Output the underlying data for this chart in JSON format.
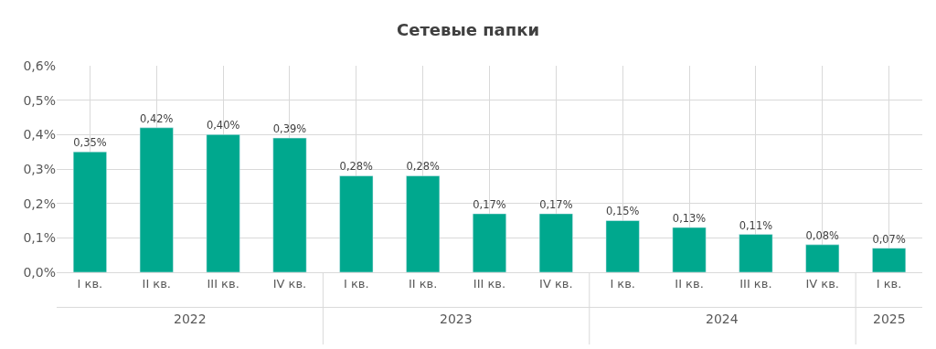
{
  "chart_data": {
    "type": "bar",
    "title": "Сетевые папки",
    "categories": [
      "I кв.",
      "II кв.",
      "III кв.",
      "IV кв.",
      "I кв.",
      "II кв.",
      "III кв.",
      "IV кв.",
      "I кв.",
      "II кв.",
      "III кв.",
      "IV кв.",
      "I кв."
    ],
    "values": [
      0.35,
      0.42,
      0.4,
      0.39,
      0.28,
      0.28,
      0.17,
      0.17,
      0.15,
      0.13,
      0.11,
      0.08,
      0.07
    ],
    "value_labels": [
      "0,35%",
      "0,42%",
      "0,40%",
      "0,39%",
      "0,28%",
      "0,28%",
      "0,17%",
      "0,17%",
      "0,15%",
      "0,13%",
      "0,11%",
      "0,08%",
      "0,07%"
    ],
    "color": "#00a88e",
    "ylim": [
      0,
      0.6
    ],
    "yticks": [
      {
        "value": 0,
        "label": "0,0%"
      },
      {
        "value": 0.1,
        "label": "0,1%"
      },
      {
        "value": 0.2,
        "label": "0,2%"
      },
      {
        "value": 0.3,
        "label": "0,3%"
      },
      {
        "value": 0.4,
        "label": "0,4%"
      },
      {
        "value": 0.5,
        "label": "0,5%"
      },
      {
        "value": 0.6,
        "label": "0,6%"
      }
    ],
    "grid": true,
    "annotations": [
      "2022",
      "2023",
      "2024",
      "2025"
    ]
  }
}
